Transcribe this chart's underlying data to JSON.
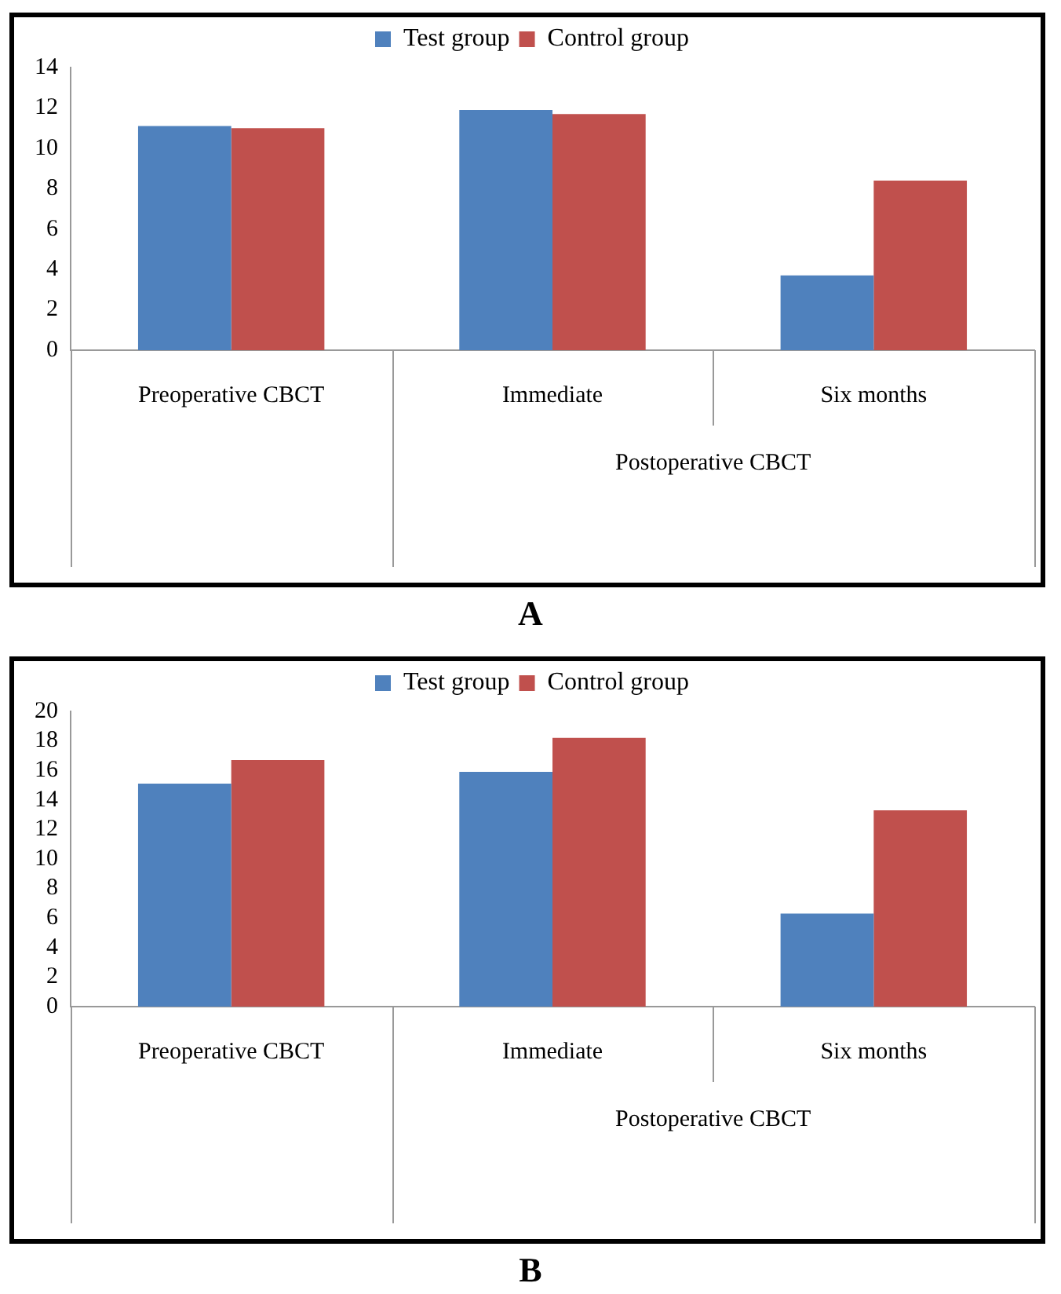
{
  "chart_data": [
    {
      "type": "bar",
      "title": "A",
      "categories": [
        "Preoperative CBCT",
        "Immediate",
        "Six months"
      ],
      "series": [
        {
          "name": "Test group",
          "color": "#4f81bd",
          "values": [
            11.1,
            11.9,
            3.7
          ]
        },
        {
          "name": "Control group",
          "color": "#c0504d",
          "values": [
            11.0,
            11.7,
            8.4
          ]
        }
      ],
      "ylim": [
        0,
        14
      ],
      "yticks": [
        0,
        2,
        4,
        6,
        8,
        10,
        12,
        14
      ],
      "grid": false,
      "legend": "top",
      "annotations": [
        "Postoperative CBCT"
      ]
    },
    {
      "type": "bar",
      "title": "B",
      "categories": [
        "Preoperative CBCT",
        "Immediate",
        "Six months"
      ],
      "series": [
        {
          "name": "Test group",
          "color": "#4f81bd",
          "values": [
            15.1,
            15.9,
            6.3
          ]
        },
        {
          "name": "Control group",
          "color": "#c0504d",
          "values": [
            16.7,
            18.2,
            13.3
          ]
        }
      ],
      "ylim": [
        0,
        20
      ],
      "yticks": [
        0,
        2,
        4,
        6,
        8,
        10,
        12,
        14,
        16,
        18,
        20
      ],
      "grid": false,
      "legend": "top",
      "annotations": [
        "Postoperative CBCT"
      ]
    }
  ]
}
